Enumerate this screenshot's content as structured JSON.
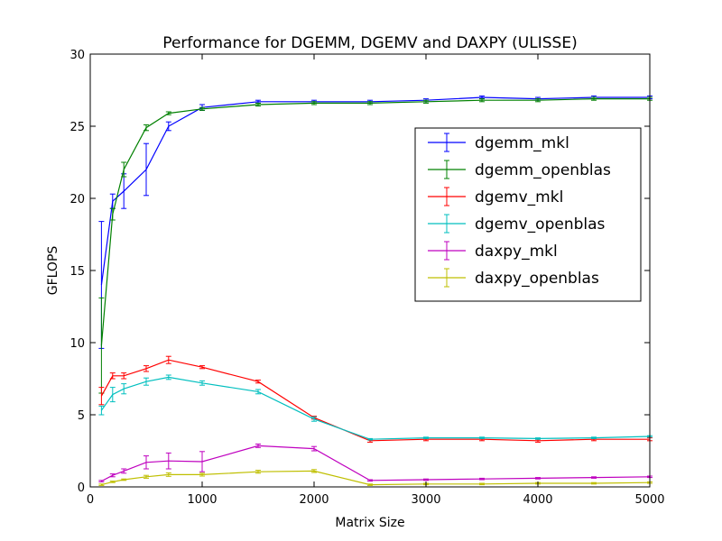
{
  "chart_data": {
    "type": "line",
    "title": "Performance for DGEMM, DGEMV and DAXPY (ULISSE)",
    "xlabel": "Matrix Size",
    "ylabel": "GFLOPS",
    "xlim": [
      0,
      5000
    ],
    "ylim": [
      0,
      30
    ],
    "xticks": [
      0,
      1000,
      2000,
      3000,
      4000,
      5000
    ],
    "yticks": [
      0,
      5,
      10,
      15,
      20,
      25,
      30
    ],
    "grid": false,
    "legend_position": "right",
    "error_bars": true,
    "series": [
      {
        "name": "dgemm_mkl",
        "color": "#0000ff",
        "x": [
          100,
          200,
          300,
          500,
          700,
          1000,
          1500,
          2000,
          2500,
          3000,
          3500,
          4000,
          4500,
          5000
        ],
        "y": [
          14.0,
          19.8,
          20.5,
          22.0,
          25.0,
          26.3,
          26.7,
          26.7,
          26.7,
          26.8,
          27.0,
          26.9,
          27.0,
          27.0
        ],
        "err": [
          4.4,
          0.5,
          1.2,
          1.8,
          0.3,
          0.2,
          0.1,
          0.1,
          0.1,
          0.1,
          0.1,
          0.1,
          0.1,
          0.1
        ]
      },
      {
        "name": "dgemm_openblas",
        "color": "#008000",
        "x": [
          100,
          200,
          300,
          500,
          700,
          1000,
          1500,
          2000,
          2500,
          3000,
          3500,
          4000,
          4500,
          5000
        ],
        "y": [
          9.8,
          18.9,
          22.0,
          24.9,
          25.9,
          26.2,
          26.5,
          26.6,
          26.6,
          26.7,
          26.8,
          26.8,
          26.9,
          26.9
        ],
        "err": [
          3.3,
          0.4,
          0.5,
          0.2,
          0.1,
          0.1,
          0.1,
          0.1,
          0.1,
          0.1,
          0.1,
          0.1,
          0.1,
          0.1
        ]
      },
      {
        "name": "dgemv_mkl",
        "color": "#ff0000",
        "x": [
          100,
          200,
          300,
          500,
          700,
          1000,
          1500,
          2000,
          2500,
          3000,
          3500,
          4000,
          4500,
          5000
        ],
        "y": [
          6.3,
          7.7,
          7.7,
          8.2,
          8.8,
          8.3,
          7.3,
          4.8,
          3.2,
          3.3,
          3.3,
          3.2,
          3.3,
          3.3
        ],
        "err": [
          0.6,
          0.2,
          0.2,
          0.2,
          0.25,
          0.1,
          0.1,
          0.1,
          0.1,
          0.1,
          0.1,
          0.1,
          0.1,
          0.1
        ]
      },
      {
        "name": "dgemv_openblas",
        "color": "#00bfbf",
        "x": [
          100,
          200,
          300,
          500,
          700,
          1000,
          1500,
          2000,
          2500,
          3000,
          3500,
          4000,
          4500,
          5000
        ],
        "y": [
          5.3,
          6.4,
          6.8,
          7.3,
          7.6,
          7.2,
          6.6,
          4.7,
          3.3,
          3.4,
          3.4,
          3.35,
          3.4,
          3.5
        ],
        "err": [
          0.3,
          0.5,
          0.35,
          0.25,
          0.15,
          0.15,
          0.15,
          0.15,
          0.05,
          0.05,
          0.05,
          0.05,
          0.05,
          0.05
        ]
      },
      {
        "name": "daxpy_mkl",
        "color": "#bf00bf",
        "x": [
          100,
          200,
          300,
          500,
          700,
          1000,
          1500,
          2000,
          2500,
          3000,
          3500,
          4000,
          4500,
          5000
        ],
        "y": [
          0.4,
          0.8,
          1.1,
          1.7,
          1.8,
          1.75,
          2.85,
          2.65,
          0.45,
          0.5,
          0.55,
          0.6,
          0.65,
          0.7
        ],
        "err": [
          0.05,
          0.1,
          0.15,
          0.45,
          0.55,
          0.7,
          0.12,
          0.15,
          0.05,
          0.05,
          0.05,
          0.05,
          0.05,
          0.05
        ]
      },
      {
        "name": "daxpy_openblas",
        "color": "#bfbf00",
        "x": [
          100,
          200,
          300,
          500,
          700,
          1000,
          1500,
          2000,
          2500,
          3000,
          3500,
          4000,
          4500,
          5000
        ],
        "y": [
          0.15,
          0.35,
          0.5,
          0.7,
          0.85,
          0.85,
          1.05,
          1.1,
          0.15,
          0.2,
          0.2,
          0.25,
          0.25,
          0.3
        ],
        "err": [
          0.05,
          0.05,
          0.05,
          0.1,
          0.12,
          0.1,
          0.1,
          0.1,
          0.05,
          0.05,
          0.05,
          0.05,
          0.05,
          0.05
        ]
      }
    ]
  }
}
